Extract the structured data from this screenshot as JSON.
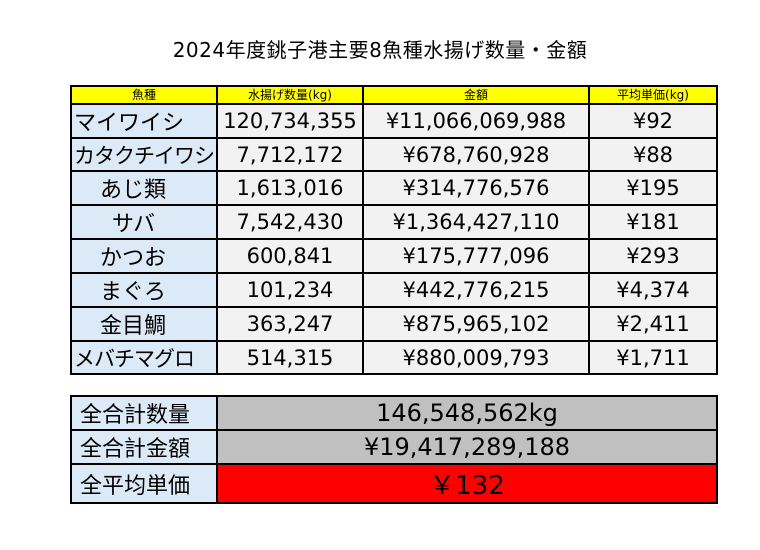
{
  "title": "2024年度銚子港主要8魚種水揚げ数量・金額",
  "headers": [
    "魚種",
    "水揚げ数量(kg)",
    "金額",
    "平均単価(kg)"
  ],
  "rows": [
    {
      "fish": "マイワイシ",
      "qty": "120,734,355",
      "amount": "¥11,066,069,988",
      "unit": "¥92"
    },
    {
      "fish": "カタクチイワシ",
      "qty": "7,712,172",
      "amount": "¥678,760,928",
      "unit": "¥88"
    },
    {
      "fish": "あじ類",
      "qty": "1,613,016",
      "amount": "¥314,776,576",
      "unit": "¥195"
    },
    {
      "fish": "サバ",
      "qty": "7,542,430",
      "amount": "¥1,364,427,110",
      "unit": "¥181"
    },
    {
      "fish": "かつお",
      "qty": "600,841",
      "amount": "¥175,777,096",
      "unit": "¥293"
    },
    {
      "fish": "まぐろ",
      "qty": "101,234",
      "amount": "¥442,776,215",
      "unit": "¥4,374"
    },
    {
      "fish": "金目鯛",
      "qty": "363,247",
      "amount": "¥875,965,102",
      "unit": "¥2,411"
    },
    {
      "fish": "メバチマグロ",
      "qty": "514,315",
      "amount": "¥880,009,793",
      "unit": "¥1,711"
    }
  ],
  "summary": {
    "total_qty_label": "全合計数量",
    "total_qty": "146,548,562kg",
    "total_amount_label": "全合計金額",
    "total_amount": "¥19,417,289,188",
    "avg_unit_label": "全平均単価",
    "avg_unit": "￥132"
  }
}
